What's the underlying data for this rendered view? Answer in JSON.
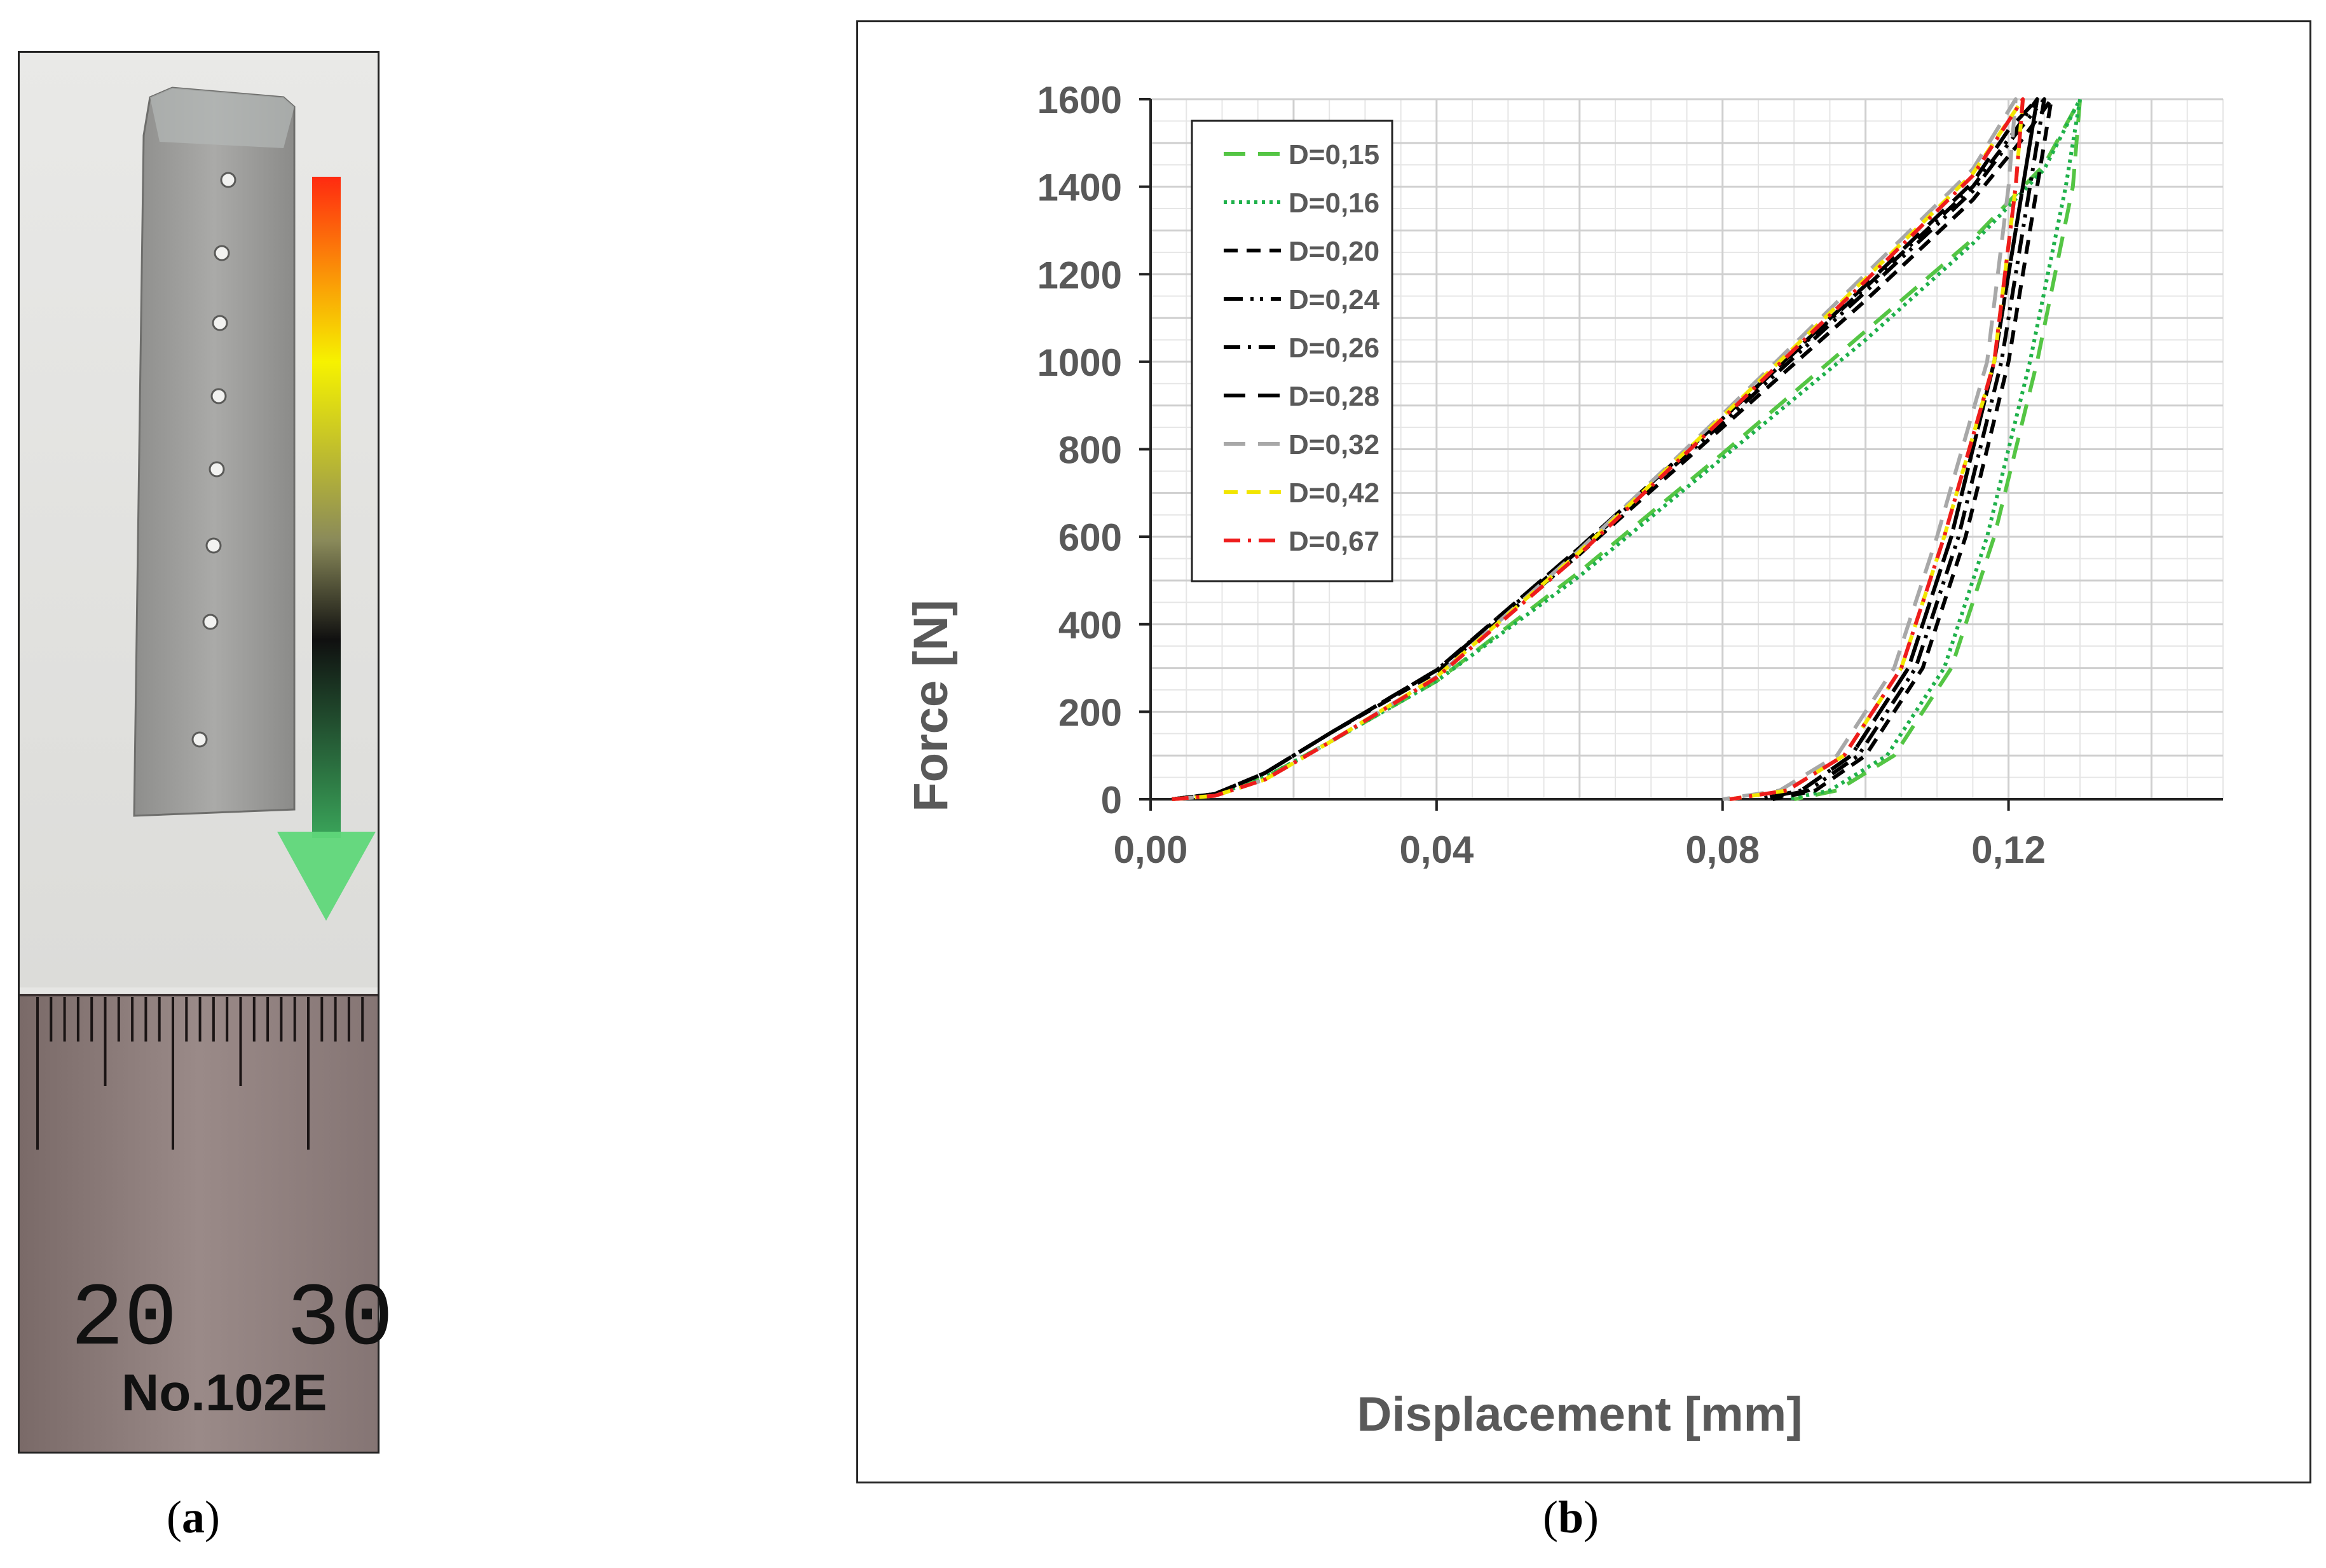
{
  "captions": {
    "a": "a",
    "b": "b"
  },
  "ruler": {
    "label_20": "20",
    "label_30": "30",
    "model": "No.102E"
  },
  "colors": {
    "arrow_top": "#ff2a10",
    "arrow_mid": "#f6f200",
    "arrow_dark": "#101010",
    "arrow_tip": "#5fd77a"
  },
  "chart_data": {
    "type": "line",
    "xlabel": "Displacement [mm]",
    "ylabel": "Force [N]",
    "xlim": [
      0,
      0.15
    ],
    "ylim": [
      0,
      1600
    ],
    "xticks": [
      "0,00",
      "0,04",
      "0,08",
      "0,12"
    ],
    "xtick_values": [
      0,
      0.04,
      0.08,
      0.12
    ],
    "yticks": [
      "0",
      "200",
      "400",
      "600",
      "800",
      "1000",
      "1200",
      "1400",
      "1600"
    ],
    "ytick_values": [
      0,
      200,
      400,
      600,
      800,
      1000,
      1200,
      1400,
      1600
    ],
    "grid": true,
    "legend_position": "top-left",
    "series": [
      {
        "name": "D=0,15",
        "color": "#54c544",
        "dash": "long-dash",
        "points": [
          [
            0.003,
            0
          ],
          [
            0.009,
            10
          ],
          [
            0.016,
            50
          ],
          [
            0.025,
            130
          ],
          [
            0.04,
            270
          ],
          [
            0.06,
            520
          ],
          [
            0.08,
            790
          ],
          [
            0.1,
            1070
          ],
          [
            0.115,
            1280
          ],
          [
            0.125,
            1450
          ],
          [
            0.13,
            1600
          ],
          [
            0.129,
            1400
          ],
          [
            0.124,
            1000
          ],
          [
            0.118,
            600
          ],
          [
            0.112,
            300
          ],
          [
            0.104,
            100
          ],
          [
            0.096,
            20
          ],
          [
            0.09,
            0
          ]
        ]
      },
      {
        "name": "D=0,16",
        "color": "#1fb14b",
        "dash": "dotted",
        "points": [
          [
            0.003,
            0
          ],
          [
            0.009,
            10
          ],
          [
            0.016,
            50
          ],
          [
            0.025,
            130
          ],
          [
            0.04,
            270
          ],
          [
            0.06,
            510
          ],
          [
            0.08,
            780
          ],
          [
            0.1,
            1050
          ],
          [
            0.115,
            1270
          ],
          [
            0.125,
            1440
          ],
          [
            0.13,
            1600
          ],
          [
            0.128,
            1400
          ],
          [
            0.123,
            1000
          ],
          [
            0.117,
            600
          ],
          [
            0.111,
            300
          ],
          [
            0.103,
            100
          ],
          [
            0.095,
            20
          ],
          [
            0.089,
            0
          ]
        ]
      },
      {
        "name": "D=0,20",
        "color": "#000000",
        "dash": "dash",
        "points": [
          [
            0.003,
            0
          ],
          [
            0.009,
            12
          ],
          [
            0.016,
            60
          ],
          [
            0.025,
            150
          ],
          [
            0.04,
            290
          ],
          [
            0.06,
            560
          ],
          [
            0.08,
            850
          ],
          [
            0.1,
            1140
          ],
          [
            0.115,
            1370
          ],
          [
            0.122,
            1510
          ],
          [
            0.126,
            1600
          ],
          [
            0.124,
            1400
          ],
          [
            0.12,
            1000
          ],
          [
            0.114,
            600
          ],
          [
            0.108,
            300
          ],
          [
            0.1,
            100
          ],
          [
            0.093,
            20
          ],
          [
            0.087,
            0
          ]
        ]
      },
      {
        "name": "D=0,24",
        "color": "#000000",
        "dash": "dash-dot-dot",
        "points": [
          [
            0.003,
            0
          ],
          [
            0.009,
            12
          ],
          [
            0.016,
            60
          ],
          [
            0.025,
            150
          ],
          [
            0.04,
            295
          ],
          [
            0.06,
            570
          ],
          [
            0.08,
            860
          ],
          [
            0.1,
            1160
          ],
          [
            0.115,
            1390
          ],
          [
            0.121,
            1520
          ],
          [
            0.125,
            1600
          ],
          [
            0.123,
            1400
          ],
          [
            0.119,
            1000
          ],
          [
            0.113,
            600
          ],
          [
            0.107,
            300
          ],
          [
            0.099,
            100
          ],
          [
            0.092,
            20
          ],
          [
            0.086,
            0
          ]
        ]
      },
      {
        "name": "D=0,26",
        "color": "#000000",
        "dash": "dash-dot",
        "points": [
          [
            0.003,
            0
          ],
          [
            0.009,
            12
          ],
          [
            0.016,
            60
          ],
          [
            0.025,
            150
          ],
          [
            0.04,
            295
          ],
          [
            0.06,
            575
          ],
          [
            0.08,
            870
          ],
          [
            0.1,
            1170
          ],
          [
            0.115,
            1400
          ],
          [
            0.121,
            1530
          ],
          [
            0.124,
            1600
          ],
          [
            0.122,
            1400
          ],
          [
            0.118,
            1000
          ],
          [
            0.112,
            600
          ],
          [
            0.106,
            300
          ],
          [
            0.098,
            100
          ],
          [
            0.091,
            20
          ],
          [
            0.085,
            0
          ]
        ]
      },
      {
        "name": "D=0,28",
        "color": "#000000",
        "dash": "long-dash",
        "points": [
          [
            0.003,
            0
          ],
          [
            0.009,
            12
          ],
          [
            0.016,
            60
          ],
          [
            0.025,
            150
          ],
          [
            0.04,
            295
          ],
          [
            0.06,
            575
          ],
          [
            0.08,
            870
          ],
          [
            0.1,
            1175
          ],
          [
            0.115,
            1410
          ],
          [
            0.12,
            1530
          ],
          [
            0.124,
            1600
          ],
          [
            0.122,
            1400
          ],
          [
            0.118,
            1000
          ],
          [
            0.112,
            600
          ],
          [
            0.106,
            300
          ],
          [
            0.098,
            100
          ],
          [
            0.091,
            20
          ],
          [
            0.085,
            0
          ]
        ]
      },
      {
        "name": "D=0,32",
        "color": "#a8a8a8",
        "dash": "long-dash",
        "points": [
          [
            0.003,
            0
          ],
          [
            0.009,
            8
          ],
          [
            0.016,
            45
          ],
          [
            0.025,
            130
          ],
          [
            0.04,
            280
          ],
          [
            0.06,
            570
          ],
          [
            0.08,
            880
          ],
          [
            0.1,
            1200
          ],
          [
            0.115,
            1440
          ],
          [
            0.121,
            1600
          ],
          [
            0.12,
            1400
          ],
          [
            0.117,
            1000
          ],
          [
            0.11,
            600
          ],
          [
            0.104,
            300
          ],
          [
            0.096,
            100
          ],
          [
            0.088,
            20
          ],
          [
            0.08,
            0
          ]
        ]
      },
      {
        "name": "D=0,42",
        "color": "#f2e600",
        "dash": "dash",
        "points": [
          [
            0.003,
            0
          ],
          [
            0.009,
            8
          ],
          [
            0.016,
            45
          ],
          [
            0.025,
            130
          ],
          [
            0.04,
            280
          ],
          [
            0.06,
            565
          ],
          [
            0.08,
            875
          ],
          [
            0.1,
            1190
          ],
          [
            0.115,
            1430
          ],
          [
            0.122,
            1600
          ],
          [
            0.121,
            1400
          ],
          [
            0.118,
            1000
          ],
          [
            0.111,
            600
          ],
          [
            0.105,
            300
          ],
          [
            0.097,
            100
          ],
          [
            0.089,
            20
          ],
          [
            0.081,
            0
          ]
        ]
      },
      {
        "name": "D=0,67",
        "color": "#ee1c1c",
        "dash": "dash-dot",
        "points": [
          [
            0.003,
            0
          ],
          [
            0.009,
            8
          ],
          [
            0.016,
            45
          ],
          [
            0.025,
            130
          ],
          [
            0.04,
            278
          ],
          [
            0.06,
            560
          ],
          [
            0.08,
            870
          ],
          [
            0.1,
            1185
          ],
          [
            0.115,
            1425
          ],
          [
            0.122,
            1600
          ],
          [
            0.121,
            1400
          ],
          [
            0.118,
            1000
          ],
          [
            0.111,
            600
          ],
          [
            0.105,
            300
          ],
          [
            0.097,
            100
          ],
          [
            0.089,
            20
          ],
          [
            0.081,
            0
          ]
        ]
      }
    ]
  }
}
